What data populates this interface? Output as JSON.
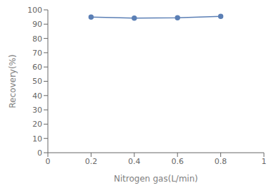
{
  "chart_data": {
    "type": "line",
    "x": [
      0.2,
      0.4,
      0.6,
      0.8
    ],
    "values": [
      95.0,
      94.2,
      94.5,
      95.5
    ],
    "color": "#5b7fb5",
    "marker": "circle",
    "xlabel": "Nitrogen gas(L/min)",
    "ylabel": "Recovery(%)",
    "xlim": [
      0,
      1
    ],
    "ylim": [
      0,
      100
    ],
    "xticks": [
      0,
      0.2,
      0.4,
      0.6,
      0.8,
      1.0
    ],
    "yticks": [
      0,
      10,
      20,
      30,
      40,
      50,
      60,
      70,
      80,
      90,
      100
    ],
    "grid": false
  }
}
